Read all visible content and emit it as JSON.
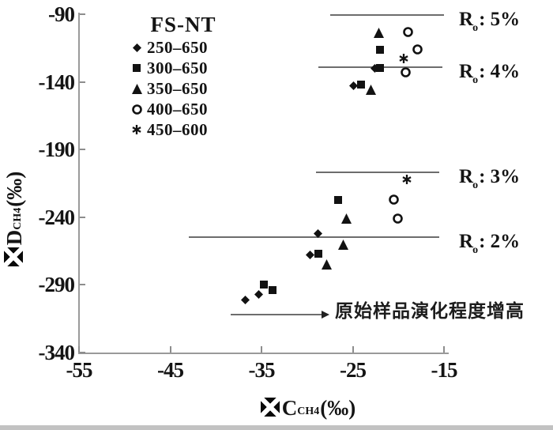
{
  "colors": {
    "background": "#ffffff",
    "marker": "#121212",
    "reference_line": "#6d6d6d",
    "axis": "#9a9a9a",
    "text": "#141414",
    "bottom_band": "#c2c2c2"
  },
  "legend": {
    "title": "FS-NT",
    "items": [
      {
        "marker": "diamond",
        "label": "250–650"
      },
      {
        "marker": "square",
        "label": "300–650"
      },
      {
        "marker": "triangle",
        "label": "350–650"
      },
      {
        "marker": "circle-open",
        "label": "400–650"
      },
      {
        "marker": "asterisk",
        "label": "450–600"
      }
    ]
  },
  "axes": {
    "x_title": {
      "icon": "boxed-x-icon",
      "letter": "C",
      "sub": "CH4",
      "unit": "(‰)"
    },
    "y_title": {
      "icon": "boxed-x-icon",
      "letter": "D",
      "sub": "CH4",
      "unit": "(‰)"
    }
  },
  "chart_data": {
    "type": "scatter",
    "title": "",
    "xlabel": "⊠C_CH4 (‰)",
    "ylabel": "⊠D_CH4 (‰)",
    "xlim": [
      -55,
      -15
    ],
    "ylim": [
      -340,
      -90
    ],
    "x_ticks": [
      -55,
      -45,
      -35,
      -25,
      -15
    ],
    "y_ticks": [
      -90,
      -140,
      -190,
      -240,
      -290,
      -340
    ],
    "grid": false,
    "legend_position": "upper-left",
    "series": [
      {
        "name": "250–650",
        "marker": "diamond",
        "points": [
          [
            -36.8,
            -301
          ],
          [
            -35.3,
            -297
          ],
          [
            -29.7,
            -268
          ],
          [
            -28.8,
            -252
          ],
          [
            -24.9,
            -143
          ],
          [
            -22.6,
            -130
          ]
        ]
      },
      {
        "name": "300–650",
        "marker": "square",
        "points": [
          [
            -34.7,
            -290
          ],
          [
            -33.8,
            -294
          ],
          [
            -28.8,
            -267
          ],
          [
            -26.6,
            -227
          ],
          [
            -24.1,
            -142
          ],
          [
            -22.0,
            -130
          ],
          [
            -22.0,
            -116
          ]
        ]
      },
      {
        "name": "350–650",
        "marker": "triangle",
        "points": [
          [
            -27.9,
            -275
          ],
          [
            -26.0,
            -260
          ],
          [
            -25.7,
            -241
          ],
          [
            -23.0,
            -146
          ],
          [
            -22.1,
            -104
          ]
        ]
      },
      {
        "name": "400–650",
        "marker": "circle-open",
        "points": [
          [
            -20.1,
            -241
          ],
          [
            -20.5,
            -227
          ],
          [
            -19.2,
            -133
          ],
          [
            -17.9,
            -116
          ],
          [
            -18.9,
            -103
          ]
        ]
      },
      {
        "name": "450–600",
        "marker": "asterisk",
        "points": [
          [
            -19.1,
            -212
          ],
          [
            -19.4,
            -123
          ]
        ]
      }
    ],
    "reference_lines": [
      {
        "label": "Ro: 5%",
        "label_r": "R",
        "label_sub": "o",
        "label_rest": ": 5%",
        "y": -90.5,
        "x_start": -27.5,
        "x_end": -15.0
      },
      {
        "label": "Ro: 4%",
        "label_r": "R",
        "label_sub": "o",
        "label_rest": ": 4%",
        "y": -129,
        "x_start": -28.8,
        "x_end": -15.2
      },
      {
        "label": "Ro: 3%",
        "label_r": "R",
        "label_sub": "o",
        "label_rest": ": 3%",
        "y": -207,
        "x_start": -29.0,
        "x_end": -15.5
      },
      {
        "label": "Ro: 2%",
        "label_r": "R",
        "label_sub": "o",
        "label_rest": ": 2%",
        "y": -255,
        "x_start": -43.0,
        "x_end": -15.5
      }
    ],
    "annotation": {
      "text": "原始样品演化程度增高",
      "arrow_y": -312,
      "arrow_x_start": -38.4,
      "arrow_x_end": -28.2
    }
  }
}
